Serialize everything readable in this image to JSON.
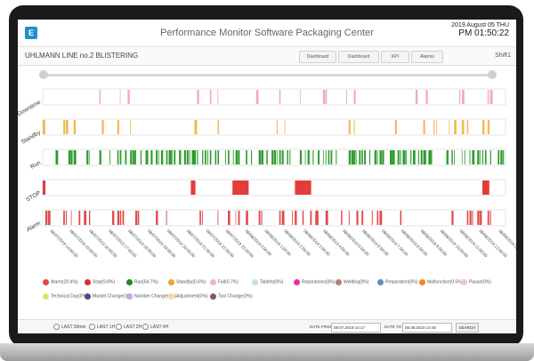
{
  "header": {
    "logo_text": "E",
    "app_title": "Performance Monitor Software Packaging Center",
    "date": "2019 August 05 THU",
    "time": "PM 01:50:22"
  },
  "subheader": {
    "line_name": "UHLMANN LINE no.2 BLISTERING",
    "buttons": [
      "Dashboard",
      "Dashboard",
      "KPI",
      "Alarms"
    ],
    "shift": "Shift1"
  },
  "chart_data": {
    "type": "event-timeline",
    "rows": [
      {
        "name": "Downtime",
        "color": "#f2a9bd",
        "seed": 11,
        "density": 0.09
      },
      {
        "name": "Standby",
        "color": "#f0b94f",
        "seed": 23,
        "density": 0.13
      },
      {
        "name": "Run",
        "color": "#2e9b2e",
        "seed": 37,
        "density": 0.62
      },
      {
        "name": "STOP",
        "color": "#e63b3b",
        "seed": 0,
        "density": 0,
        "blocks": [
          [
            0.0,
            0.006
          ],
          [
            0.32,
            0.33
          ],
          [
            0.41,
            0.445
          ],
          [
            0.545,
            0.58
          ],
          [
            0.95,
            0.965
          ]
        ]
      },
      {
        "name": "Alarm",
        "color": "#e24b4b",
        "seed": 53,
        "density": 0.3
      }
    ],
    "x_ticks": [
      "08/07/2019 14:00:00",
      "08/07/2019 15:00:00",
      "08/07/2019 16:00:00",
      "08/07/2019 17:00:00",
      "08/07/2019 18:00:00",
      "08/07/2019 19:00:00",
      "08/07/2019 20:00:00",
      "08/07/2019 21:00:00",
      "08/07/2019 22:00:00",
      "08/07/2019 23:00:00",
      "08/08/2019 0:00:00",
      "08/08/2019 1:00:00",
      "08/08/2019 2:00:00",
      "08/08/2019 3:00:00",
      "08/08/2019 4:00:00",
      "08/08/2019 5:00:00",
      "08/08/2019 6:00:00",
      "08/08/2019 7:00:00",
      "08/08/2019 8:00:00",
      "08/08/2019 9:00:00",
      "08/08/2019 10:00:00",
      "08/08/2019 11:00:00",
      "08/08/2019 12:00:00",
      "08/08/2019 13:00:00"
    ]
  },
  "legend": [
    {
      "label": "Alarm(20.4%)",
      "color": "#e04848"
    },
    {
      "label": "Stop(9.8%)",
      "color": "#d42f2f"
    },
    {
      "label": "Run(64.7%)",
      "color": "#1d8a1d"
    },
    {
      "label": "Standby(0.6%)",
      "color": "#f0a336"
    },
    {
      "label": "Fail(0.7%)",
      "color": "#f4b3c4"
    },
    {
      "label": "Tablets(0%)",
      "color": "#bfe7d2"
    },
    {
      "label": "Reparations(0%)",
      "color": "#e22fa6"
    },
    {
      "label": "Welding(0%)",
      "color": "#b08570"
    },
    {
      "label": "Preparation(0%)",
      "color": "#5b8fbd"
    },
    {
      "label": "Malfunction(0.5%)",
      "color": "#f0892a"
    },
    {
      "label": "Pause(0%)",
      "color": "#f6c6c6"
    },
    {
      "label": "Technical Day(0%)",
      "color": "#d9e86a"
    },
    {
      "label": "Market Change(0%)",
      "color": "#4b4b8a"
    },
    {
      "label": "Number Change(0%)",
      "color": "#c7a9d6"
    },
    {
      "label": "Adjustment(0%)",
      "color": "#f3dfa2"
    },
    {
      "label": "Tool Change(0%)",
      "color": "#8a5a5a"
    }
  ],
  "footer": {
    "radios": [
      "LAST 30min",
      "LAST 1H",
      "LAST 2H",
      "LAST 4H"
    ],
    "date_from_label": "DATE FROM",
    "date_from": "08.07.2019 14:17",
    "date_to_label": "DATE TO",
    "date_to": "08.08.2019 14:45",
    "search_label": "SEARCH"
  }
}
